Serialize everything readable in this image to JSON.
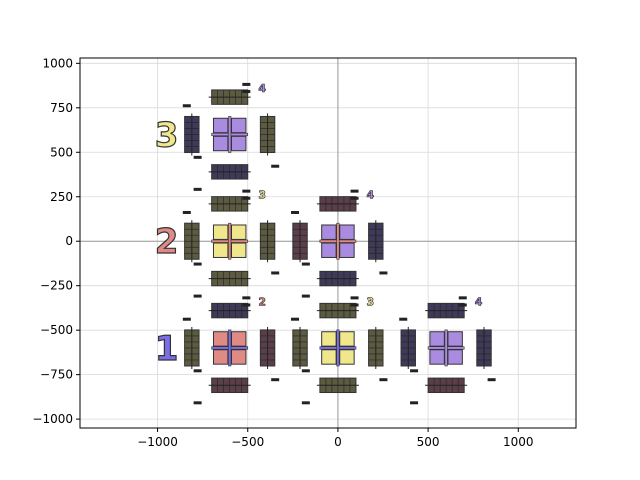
{
  "chart_data": {
    "type": "scatter",
    "title": "",
    "xlabel": "",
    "ylabel": "",
    "xlim": [
      -1000,
      1000
    ],
    "ylim": [
      -1000,
      1000
    ],
    "grid": true,
    "axes_lines_at_zero": true,
    "xticks": [
      -1000,
      -500,
      0,
      500,
      1000
    ],
    "yticks": [
      -1000,
      -750,
      -500,
      -250,
      0,
      250,
      500,
      750,
      1000
    ],
    "xtick_labels": [
      "−1000",
      "−500",
      "0",
      "500",
      "1000"
    ],
    "ytick_labels": [
      "−1000",
      "−750",
      "−500",
      "−250",
      "0",
      "250",
      "500",
      "750",
      "1000"
    ],
    "colors": {
      "blue": "#7b6ee8",
      "red": "#e08a86",
      "yellow": "#f0e68c",
      "purple": "#a98be0",
      "dark_olive": "#5c5a40",
      "dark_navy": "#3f3a58",
      "dark_brown": "#5a3f4a",
      "outline": "#333333",
      "grid": "#d9d9d9"
    },
    "glyphs": [
      {
        "x": -950,
        "y": 600,
        "text": "3",
        "color": "yellow"
      },
      {
        "x": -950,
        "y": 0,
        "text": "2",
        "color": "red"
      },
      {
        "x": -950,
        "y": -600,
        "text": "1",
        "color": "blue"
      }
    ],
    "modules": [
      {
        "cx": -600,
        "cy": 600,
        "center": "purple",
        "top_bar": "dark_olive",
        "bottom_bar": "dark_navy",
        "left_bar": "dark_navy",
        "right_bar": "dark_olive",
        "label": "4",
        "label_color": "purple"
      },
      {
        "cx": -600,
        "cy": 0,
        "center": "yellow",
        "cross": "red",
        "top_bar": "dark_olive",
        "bottom_bar": "dark_olive",
        "left_bar": "dark_olive",
        "right_bar": "dark_olive",
        "label": "3",
        "label_color": "yellow"
      },
      {
        "cx": 0,
        "cy": 0,
        "center": "purple",
        "cross": "red",
        "top_bar": "dark_brown",
        "bottom_bar": "dark_navy",
        "left_bar": "dark_brown",
        "right_bar": "dark_navy",
        "label": "4",
        "label_color": "purple"
      },
      {
        "cx": -600,
        "cy": -600,
        "center": "red",
        "cross": "blue",
        "top_bar": "dark_navy",
        "bottom_bar": "dark_brown",
        "left_bar": "dark_olive",
        "right_bar": "dark_brown",
        "label": "2",
        "label_color": "red"
      },
      {
        "cx": 0,
        "cy": -600,
        "center": "yellow",
        "cross": "blue",
        "top_bar": "dark_olive",
        "bottom_bar": "dark_olive",
        "left_bar": "dark_olive",
        "right_bar": "dark_olive",
        "label": "3",
        "label_color": "yellow"
      },
      {
        "cx": 600,
        "cy": -600,
        "center": "purple",
        "cross": "purple",
        "top_bar": "dark_navy",
        "bottom_bar": "dark_brown",
        "left_bar": "dark_navy",
        "right_bar": "dark_navy",
        "label": "4",
        "label_color": "purple"
      }
    ]
  }
}
